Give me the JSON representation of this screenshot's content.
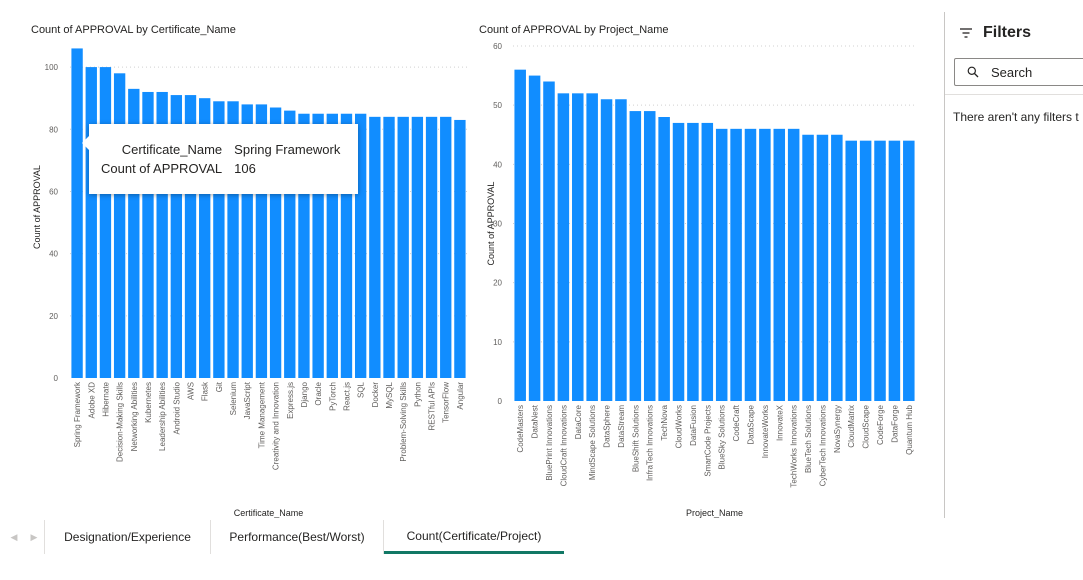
{
  "chart_data": [
    {
      "type": "bar",
      "title": "Count of APPROVAL by Certificate_Name",
      "xlabel": "Certificate_Name",
      "ylabel": "Count of APPROVAL",
      "ylim": [
        0,
        110
      ],
      "yticks": [
        0,
        20,
        40,
        60,
        80,
        100
      ],
      "grid": true,
      "color": "#118DFF",
      "categories": [
        "Spring Framework",
        "Adobe XD",
        "Hibernate",
        "Decision-Making Skills",
        "Networking Abilities",
        "Kubernetes",
        "Leadership Abilities",
        "Android Studio",
        "AWS",
        "Flask",
        "Git",
        "Selenium",
        "JavaScript",
        "Time Management",
        "Creativity and Innovation",
        "Express.js",
        "Django",
        "Oracle",
        "PyTorch",
        "React.js",
        "SQL",
        "Docker",
        "MySQL",
        "Problem-Solving Skills",
        "Python",
        "RESTful APIs",
        "TensorFlow",
        "Angular"
      ],
      "values": [
        106,
        100,
        100,
        98,
        93,
        92,
        92,
        91,
        91,
        90,
        89,
        89,
        88,
        88,
        87,
        86,
        85,
        85,
        85,
        85,
        85,
        84,
        84,
        84,
        84,
        84,
        84,
        83
      ]
    },
    {
      "type": "bar",
      "title": "Count of APPROVAL by Project_Name",
      "xlabel": "Project_Name",
      "ylabel": "Count of APPROVAL",
      "ylim": [
        0,
        60
      ],
      "yticks": [
        0,
        10,
        20,
        30,
        40,
        50,
        60
      ],
      "grid": true,
      "color": "#118DFF",
      "categories": [
        "CodeMasters",
        "DataNest",
        "BluePrint Innovations",
        "CloudCraft Innovations",
        "DataCore",
        "MindScape Solutions",
        "DataSphere",
        "DataStream",
        "BlueShift Solutions",
        "InfraTech Innovations",
        "TechNova",
        "CloudWorks",
        "DataFusion",
        "SmartCode Projects",
        "BlueSky Solutions",
        "CodeCraft",
        "DataScape",
        "InnovateWorks",
        "InnovateX",
        "TechWorks Innovations",
        "BlueTech Solutions",
        "CyberTech Innovations",
        "NovaSynergy",
        "CloudMatrix",
        "CloudScape",
        "CodeForge",
        "DataForge",
        "Quantum Hub"
      ],
      "values": [
        56,
        55,
        54,
        52,
        52,
        52,
        51,
        51,
        49,
        49,
        48,
        47,
        47,
        47,
        46,
        46,
        46,
        46,
        46,
        46,
        45,
        45,
        45,
        44,
        44,
        44,
        44,
        44
      ]
    }
  ],
  "tooltip": {
    "key1": "Certificate_Name",
    "val1": "Spring Framework",
    "key2": "Count of APPROVAL",
    "val2": "106"
  },
  "filters": {
    "title": "Filters",
    "search_placeholder": "Search",
    "empty_text": "There aren't any filters t",
    "filter_icon": "filter-icon",
    "search_icon": "search-icon"
  },
  "tabs": {
    "prev_icon": "chevron-left-icon",
    "next_icon": "chevron-right-icon",
    "items": [
      {
        "label": "Designation/Experience",
        "active": false
      },
      {
        "label": "Performance(Best/Worst)",
        "active": false
      },
      {
        "label": "Count(Certificate/Project)",
        "active": true
      }
    ],
    "accent": "#117865"
  }
}
